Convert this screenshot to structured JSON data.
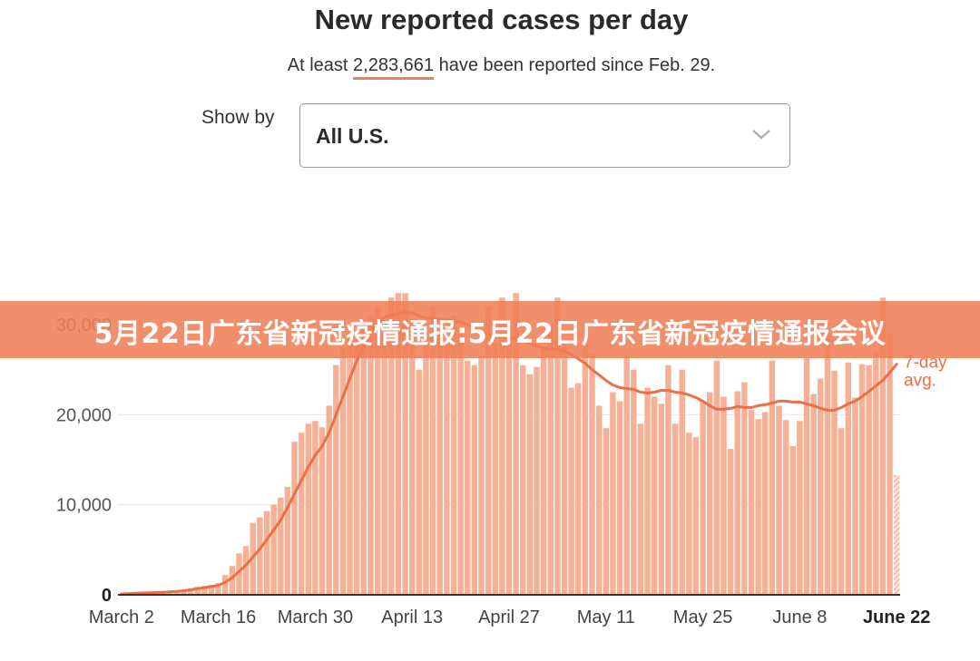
{
  "header": {
    "title": "New reported cases per day",
    "subtitle_prefix": "At least ",
    "subtitle_count": "2,283,661",
    "subtitle_suffix": " have been reported since Feb. 29."
  },
  "controls": {
    "show_by_label": "Show by",
    "select_value": "All U.S."
  },
  "banner": {
    "text": "5月22日广东省新冠疫情通报:5月22日广东省新冠疫情通报会议"
  },
  "colors": {
    "bar": "#f5b096",
    "line": "#ec6f45",
    "banner": "#ef7e56"
  },
  "chart_data": {
    "type": "bar",
    "ylim": [
      0,
      30000
    ],
    "y_ticks": [
      {
        "value": 0,
        "label": "0"
      },
      {
        "value": 10000,
        "label": "10,000"
      },
      {
        "value": 20000,
        "label": "20,000"
      },
      {
        "value": 30000,
        "label": "30,000"
      }
    ],
    "x_ticks": [
      {
        "index": 0,
        "label": "March 2"
      },
      {
        "index": 14,
        "label": "March 16"
      },
      {
        "index": 28,
        "label": "March 30"
      },
      {
        "index": 42,
        "label": "April 13"
      },
      {
        "index": 56,
        "label": "April 27"
      },
      {
        "index": 70,
        "label": "May 11"
      },
      {
        "index": 84,
        "label": "May 25"
      },
      {
        "index": 98,
        "label": "June 8"
      },
      {
        "index": 112,
        "label": "June 22",
        "bold": true
      }
    ],
    "series": [
      {
        "kind": "bars",
        "values": [
          100,
          150,
          200,
          250,
          300,
          300,
          350,
          400,
          450,
          550,
          700,
          900,
          1000,
          1100,
          1300,
          2200,
          3200,
          4600,
          5400,
          8000,
          8600,
          9300,
          10000,
          10800,
          12000,
          17000,
          18000,
          19000,
          19300,
          18600,
          21000,
          25500,
          27500,
          29000,
          28500,
          29500,
          31000,
          32000,
          29000,
          33000,
          33500,
          33500,
          30000,
          25000,
          28500,
          32000,
          30000,
          28000,
          31000,
          29500,
          26000,
          25500,
          26500,
          32000,
          28000,
          33000,
          30000,
          33500,
          25500,
          24500,
          25300,
          27500,
          30000,
          33000,
          27500,
          23000,
          23500,
          28000,
          26800,
          21000,
          18500,
          22500,
          21500,
          26500,
          25000,
          19000,
          23000,
          22000,
          21200,
          25500,
          19000,
          25000,
          18000,
          17500,
          21500,
          22500,
          26000,
          22000,
          16200,
          22600,
          23600,
          20500,
          19500,
          20300,
          26000,
          21000,
          19400,
          16500,
          19300,
          26300,
          22300,
          24000,
          29000,
          24900,
          18500,
          25800,
          21900,
          25600,
          25500,
          27000,
          33000,
          29000,
          13300
        ],
        "last_bar_incomplete": true
      },
      {
        "kind": "line",
        "name": "7-day avg.",
        "values": [
          100,
          130,
          170,
          200,
          230,
          250,
          280,
          320,
          380,
          450,
          550,
          680,
          800,
          920,
          1050,
          1400,
          1900,
          2600,
          3300,
          4200,
          5100,
          6100,
          7200,
          8300,
          9700,
          11200,
          12700,
          14200,
          15500,
          16500,
          18000,
          20000,
          22000,
          24000,
          26000,
          27600,
          29000,
          30100,
          30800,
          31000,
          31200,
          31400,
          31300,
          31000,
          30700,
          30700,
          30600,
          30500,
          30400,
          30300,
          30000,
          29600,
          29200,
          28900,
          28700,
          28600,
          28500,
          28500,
          28200,
          27900,
          27600,
          27400,
          27300,
          27200,
          27100,
          26700,
          26200,
          25700,
          25000,
          24400,
          23800,
          23300,
          23000,
          22900,
          22800,
          22500,
          22400,
          22500,
          22700,
          22700,
          22500,
          22400,
          22200,
          21900,
          21500,
          21000,
          20600,
          20600,
          20700,
          20900,
          20800,
          20800,
          21000,
          21100,
          21300,
          21500,
          21500,
          21400,
          21400,
          21200,
          21000,
          20700,
          20500,
          20500,
          20800,
          21200,
          21500,
          22000,
          22600,
          23200,
          23800,
          24700,
          25600
        ]
      }
    ]
  }
}
